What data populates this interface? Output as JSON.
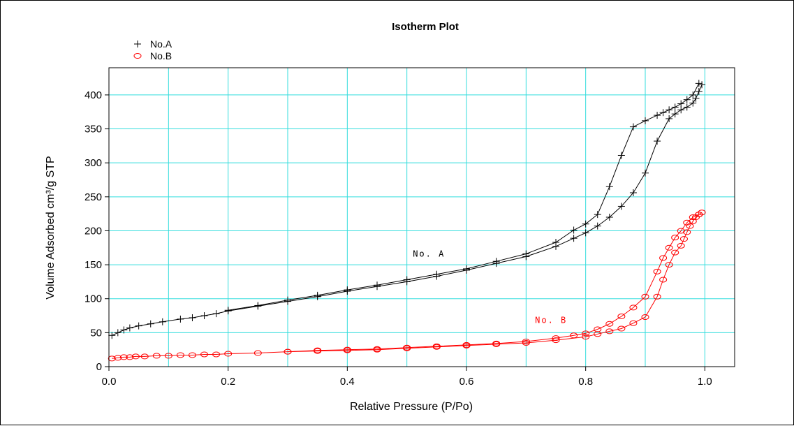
{
  "chart_data": {
    "type": "scatter",
    "title": "Isotherm Plot",
    "xlabel": "Relative Pressure (P/Po)",
    "ylabel": "Volume Adsorbed cm³/g STP",
    "xlim": [
      0,
      1.05
    ],
    "ylim": [
      0,
      440
    ],
    "x_ticks": [
      {
        "value": 0,
        "label": "0.0"
      },
      {
        "value": 0.2,
        "label": "0.2"
      },
      {
        "value": 0.4,
        "label": "0.4"
      },
      {
        "value": 0.6,
        "label": "0.6"
      },
      {
        "value": 0.8,
        "label": "0.8"
      },
      {
        "value": 1.0,
        "label": "1.0"
      }
    ],
    "y_ticks": [
      {
        "value": 0,
        "label": "0"
      },
      {
        "value": 50,
        "label": "50"
      },
      {
        "value": 100,
        "label": "100"
      },
      {
        "value": 150,
        "label": "150"
      },
      {
        "value": 200,
        "label": "200"
      },
      {
        "value": 250,
        "label": "250"
      },
      {
        "value": 300,
        "label": "300"
      },
      {
        "value": 350,
        "label": "350"
      },
      {
        "value": 400,
        "label": "400"
      }
    ],
    "x_grid": [
      0,
      0.1,
      0.2,
      0.3,
      0.4,
      0.5,
      0.6,
      0.7,
      0.8,
      0.9,
      1.0
    ],
    "y_grid": [
      0,
      50,
      100,
      150,
      200,
      250,
      300,
      350,
      400
    ],
    "grid": true,
    "grid_color": "#33DDDD",
    "legend_position": "top-left",
    "series": [
      {
        "name": "No.A",
        "color": "#000000",
        "marker": "plus",
        "adsorption": {
          "x": [
            0.005,
            0.015,
            0.025,
            0.035,
            0.05,
            0.07,
            0.09,
            0.12,
            0.14,
            0.16,
            0.18,
            0.2,
            0.25,
            0.3,
            0.35,
            0.4,
            0.45,
            0.5,
            0.55,
            0.6,
            0.65,
            0.7,
            0.75,
            0.78,
            0.8,
            0.82,
            0.84,
            0.86,
            0.88,
            0.9,
            0.92,
            0.94,
            0.95,
            0.96,
            0.97,
            0.98,
            0.985,
            0.99,
            0.995
          ],
          "y": [
            46,
            50,
            54,
            57,
            60,
            63,
            66,
            70,
            72,
            75,
            78,
            82,
            89,
            96,
            103,
            111,
            118,
            125,
            133,
            142,
            152,
            162,
            177,
            189,
            197,
            207,
            220,
            236,
            256,
            285,
            332,
            365,
            372,
            378,
            382,
            388,
            395,
            405,
            415
          ]
        },
        "desorption": {
          "x": [
            0.99,
            0.98,
            0.97,
            0.96,
            0.95,
            0.94,
            0.93,
            0.92,
            0.9,
            0.88,
            0.86,
            0.84,
            0.82,
            0.8,
            0.78,
            0.75,
            0.7,
            0.65,
            0.6,
            0.55,
            0.5,
            0.45,
            0.4,
            0.35,
            0.3,
            0.25,
            0.2
          ],
          "y": [
            417,
            400,
            393,
            387,
            382,
            378,
            374,
            370,
            362,
            353,
            311,
            265,
            224,
            210,
            201,
            183,
            166,
            155,
            144,
            136,
            128,
            120,
            113,
            105,
            98,
            90,
            83
          ]
        }
      },
      {
        "name": "No.B",
        "color": "#FF0000",
        "marker": "circle",
        "adsorption": {
          "x": [
            0.005,
            0.015,
            0.025,
            0.035,
            0.045,
            0.06,
            0.08,
            0.1,
            0.12,
            0.14,
            0.16,
            0.18,
            0.2,
            0.25,
            0.3,
            0.35,
            0.4,
            0.45,
            0.5,
            0.55,
            0.6,
            0.65,
            0.7,
            0.75,
            0.8,
            0.82,
            0.84,
            0.86,
            0.88,
            0.9,
            0.92,
            0.93,
            0.94,
            0.95,
            0.96,
            0.965,
            0.97,
            0.975,
            0.98,
            0.985,
            0.99,
            0.995
          ],
          "y": [
            12,
            13,
            14,
            14,
            15,
            15,
            16,
            16,
            17,
            17,
            18,
            18,
            19,
            20,
            22,
            23,
            24,
            25,
            27,
            29,
            31,
            33,
            35,
            39,
            44,
            48,
            52,
            56,
            64,
            73,
            103,
            128,
            150,
            168,
            178,
            188,
            198,
            207,
            214,
            220,
            224,
            227
          ]
        },
        "desorption": {
          "x": [
            0.99,
            0.98,
            0.97,
            0.96,
            0.95,
            0.94,
            0.93,
            0.92,
            0.9,
            0.88,
            0.86,
            0.84,
            0.82,
            0.8,
            0.78,
            0.75,
            0.7,
            0.65,
            0.6,
            0.55,
            0.5,
            0.45,
            0.4,
            0.35,
            0.3
          ],
          "y": [
            224,
            220,
            212,
            200,
            190,
            175,
            160,
            140,
            103,
            87,
            74,
            63,
            55,
            49,
            46,
            42,
            37,
            34,
            32,
            30,
            28,
            26,
            25,
            24,
            22
          ]
        }
      }
    ],
    "annotations": [
      {
        "text": "No. A",
        "x": 0.51,
        "y": 162,
        "color": "#000000"
      },
      {
        "text": "No. B",
        "x": 0.715,
        "y": 64,
        "color": "#FF0000"
      }
    ]
  }
}
